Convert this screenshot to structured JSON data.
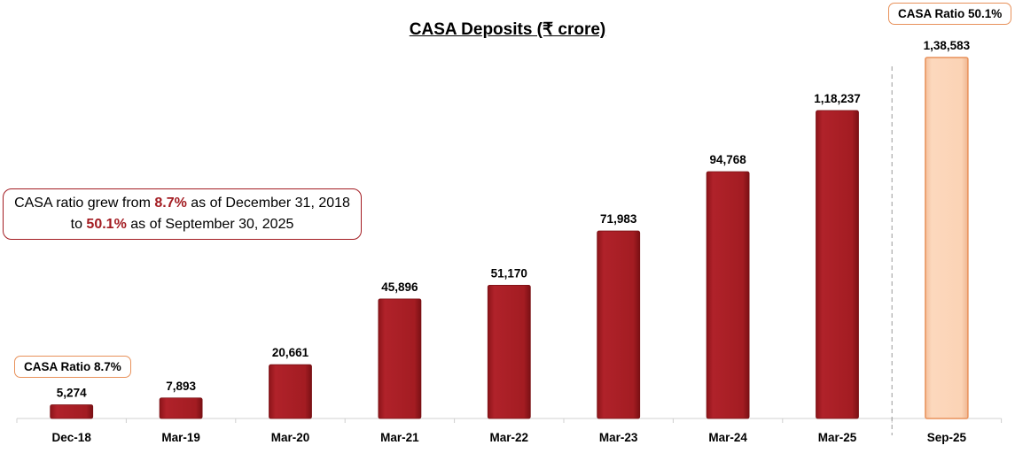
{
  "chart_data": {
    "type": "bar",
    "title": "CASA Deposits (₹ crore)",
    "categories": [
      "Dec-18",
      "Mar-19",
      "Mar-20",
      "Mar-21",
      "Mar-22",
      "Mar-23",
      "Mar-24",
      "Mar-25",
      "Sep-25"
    ],
    "values": [
      5274,
      7893,
      20661,
      45896,
      51170,
      71983,
      94768,
      118237,
      138583
    ],
    "data_labels": [
      "5,274",
      "7,893",
      "20,661",
      "45,896",
      "51,170",
      "71,983",
      "94,768",
      "1,18,237",
      "1,38,583"
    ],
    "xlabel": "",
    "ylabel": "",
    "ylim": [
      0,
      138583
    ],
    "grid": false,
    "colors": {
      "bar": "#a31c22",
      "highlight_bar": "#fbd3b5",
      "highlight_border": "#e8915a"
    },
    "annotations": {
      "start_ratio": "CASA Ratio 8.7%",
      "end_ratio": "CASA Ratio 50.1%",
      "callout": {
        "part1": "CASA ratio grew from ",
        "value1": "8.7%",
        "part2": " as of December 31, 2018 to ",
        "value2": "50.1%",
        "part3": " as of September 30, 2025"
      }
    }
  }
}
